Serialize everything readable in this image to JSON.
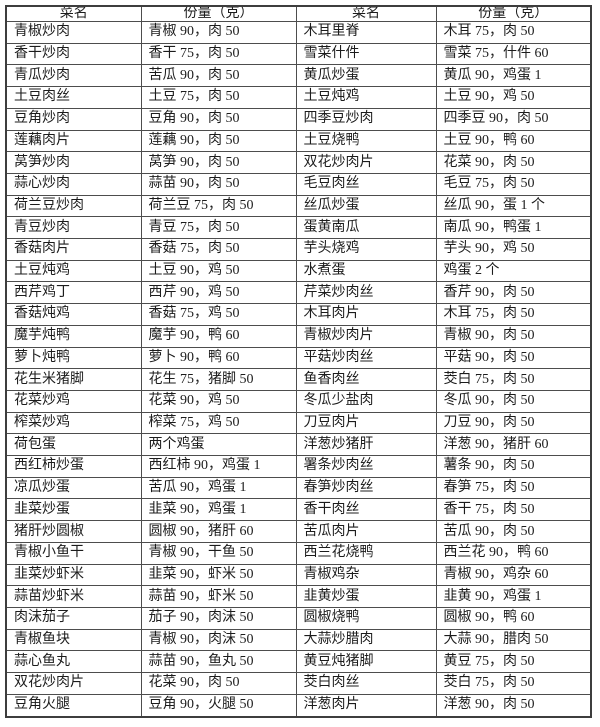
{
  "table": {
    "headers": [
      "菜名",
      "份量（克）",
      "菜名",
      "份量（克）"
    ],
    "rows": [
      [
        "青椒炒肉",
        "青椒 90，肉 50",
        "木耳里脊",
        "木耳 75，肉 50"
      ],
      [
        "香干炒肉",
        "香干 75，肉 50",
        "雪菜什件",
        "雪菜 75，什件 60"
      ],
      [
        "青瓜炒肉",
        "苦瓜 90，肉 50",
        "黄瓜炒蛋",
        "黄瓜 90，鸡蛋 1"
      ],
      [
        "土豆肉丝",
        "土豆 75，肉 50",
        "土豆炖鸡",
        "土豆 90，鸡 50"
      ],
      [
        "豆角炒肉",
        "豆角 90，肉 50",
        "四季豆炒肉",
        "四季豆 90，肉 50"
      ],
      [
        "莲藕肉片",
        "莲藕 90，肉 50",
        "土豆烧鸭",
        "土豆 90，鸭 60"
      ],
      [
        "莴笋炒肉",
        "莴笋 90，肉 50",
        "双花炒肉片",
        "花菜 90，肉 50"
      ],
      [
        "蒜心炒肉",
        "蒜苗 90，肉 50",
        "毛豆肉丝",
        "毛豆 75，肉 50"
      ],
      [
        "荷兰豆炒肉",
        "荷兰豆 75，肉 50",
        "丝瓜炒蛋",
        "丝瓜 90，蛋 1 个"
      ],
      [
        "青豆炒肉",
        "青豆 75，肉 50",
        "蛋黄南瓜",
        "南瓜 90，鸭蛋 1"
      ],
      [
        "香菇肉片",
        "香菇 75，肉 50",
        "芋头烧鸡",
        "芋头 90，鸡 50"
      ],
      [
        "土豆炖鸡",
        "土豆 90，鸡 50",
        "水煮蛋",
        "鸡蛋 2 个"
      ],
      [
        "西芹鸡丁",
        "西芹 90，鸡 50",
        "芹菜炒肉丝",
        "香芹 90，肉 50"
      ],
      [
        "香菇炖鸡",
        "香菇 75，鸡 50",
        "木耳肉片",
        "木耳 75，肉 50"
      ],
      [
        "魔芋炖鸭",
        "魔芋 90，鸭 60",
        "青椒炒肉片",
        "青椒 90，肉 50"
      ],
      [
        "萝卜炖鸭",
        "萝卜 90，鸭 60",
        "平菇炒肉丝",
        "平菇 90，肉 50"
      ],
      [
        "花生米猪脚",
        "花生 75，猪脚 50",
        "鱼香肉丝",
        "茭白 75，肉 50"
      ],
      [
        "花菜炒鸡",
        "花菜 90，鸡 50",
        "冬瓜少盐肉",
        "冬瓜 90，肉 50"
      ],
      [
        "榨菜炒鸡",
        "榨菜 75，鸡 50",
        "刀豆肉片",
        "刀豆 90，肉 50"
      ],
      [
        "荷包蛋",
        "两个鸡蛋",
        "洋葱炒猪肝",
        "洋葱 90，猪肝 60"
      ],
      [
        "西红柿炒蛋",
        "西红柿 90，鸡蛋 1",
        "署条炒肉丝",
        "薯条 90，肉 50"
      ],
      [
        "凉瓜炒蛋",
        "苦瓜 90，鸡蛋 1",
        "春笋炒肉丝",
        "春笋 75，肉 50"
      ],
      [
        "韭菜炒蛋",
        "韭菜 90，鸡蛋 1",
        "香干肉丝",
        "香干 75，肉 50"
      ],
      [
        "猪肝炒圆椒",
        "圆椒 90，猪肝 60",
        "苦瓜肉片",
        "苦瓜 90，肉 50"
      ],
      [
        "青椒小鱼干",
        "青椒 90，干鱼 50",
        "西兰花烧鸭",
        "西兰花 90，鸭 60"
      ],
      [
        "韭菜炒虾米",
        "韭菜 90，虾米 50",
        "青椒鸡杂",
        "青椒 90，鸡杂 60"
      ],
      [
        "蒜苗炒虾米",
        "蒜苗 90，虾米 50",
        "韭黄炒蛋",
        "韭黄 90，鸡蛋 1"
      ],
      [
        "肉沫茄子",
        "茄子 90，肉沫 50",
        "圆椒烧鸭",
        "圆椒 90，鸭 60"
      ],
      [
        "青椒鱼块",
        "青椒 90，肉沫 50",
        "大蒜炒腊肉",
        "大蒜 90，腊肉 50"
      ],
      [
        "蒜心鱼丸",
        "蒜苗 90，鱼丸 50",
        "黄豆炖猪脚",
        "黄豆 75，肉 50"
      ],
      [
        "双花炒肉片",
        "花菜 90，肉 50",
        "茭白肉丝",
        "茭白 75，肉 50"
      ],
      [
        "豆角火腿",
        "豆角 90，火腿 50",
        "洋葱肉片",
        "洋葱 90，肉 50"
      ]
    ]
  }
}
